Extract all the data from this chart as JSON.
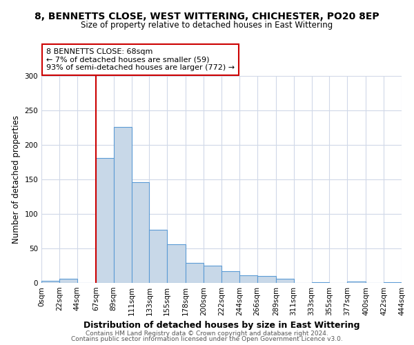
{
  "title1": "8, BENNETTS CLOSE, WEST WITTERING, CHICHESTER, PO20 8EP",
  "title2": "Size of property relative to detached houses in East Wittering",
  "xlabel": "Distribution of detached houses by size in East Wittering",
  "ylabel": "Number of detached properties",
  "bin_edges": [
    0,
    22,
    44,
    67,
    89,
    111,
    133,
    155,
    178,
    200,
    222,
    244,
    266,
    289,
    311,
    333,
    355,
    377,
    400,
    422,
    444
  ],
  "bin_labels": [
    "0sqm",
    "22sqm",
    "44sqm",
    "67sqm",
    "89sqm",
    "111sqm",
    "133sqm",
    "155sqm",
    "178sqm",
    "200sqm",
    "222sqm",
    "244sqm",
    "266sqm",
    "289sqm",
    "311sqm",
    "333sqm",
    "355sqm",
    "377sqm",
    "400sqm",
    "422sqm",
    "444sqm"
  ],
  "counts": [
    3,
    6,
    0,
    181,
    226,
    146,
    77,
    56,
    29,
    25,
    17,
    11,
    10,
    6,
    0,
    1,
    0,
    2,
    0,
    1
  ],
  "bar_color": "#c8d8e8",
  "bar_edge_color": "#5b9bd5",
  "red_line_x": 67,
  "annotation_lines": [
    "8 BENNETTS CLOSE: 68sqm",
    "← 7% of detached houses are smaller (59)",
    "93% of semi-detached houses are larger (772) →"
  ],
  "annotation_box_color": "#ffffff",
  "annotation_box_edge": "#cc0000",
  "red_line_color": "#cc0000",
  "ylim": [
    0,
    300
  ],
  "yticks": [
    0,
    50,
    100,
    150,
    200,
    250,
    300
  ],
  "grid_color": "#d0d8e8",
  "footer_line1": "Contains HM Land Registry data © Crown copyright and database right 2024.",
  "footer_line2": "Contains public sector information licensed under the Open Government Licence v3.0.",
  "bg_color": "#ffffff"
}
